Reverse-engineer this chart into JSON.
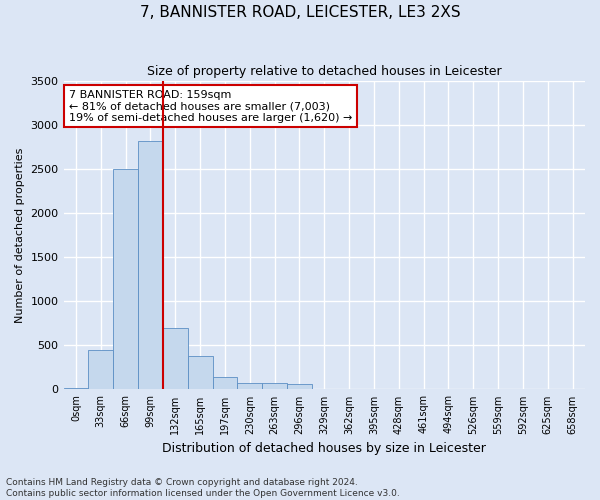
{
  "title": "7, BANNISTER ROAD, LEICESTER, LE3 2XS",
  "subtitle": "Size of property relative to detached houses in Leicester",
  "xlabel": "Distribution of detached houses by size in Leicester",
  "ylabel": "Number of detached properties",
  "footnote1": "Contains HM Land Registry data © Crown copyright and database right 2024.",
  "footnote2": "Contains public sector information licensed under the Open Government Licence v3.0.",
  "annotation_line1": "7 BANNISTER ROAD: 159sqm",
  "annotation_line2": "← 81% of detached houses are smaller (7,003)",
  "annotation_line3": "19% of semi-detached houses are larger (1,620) →",
  "bar_color": "#c5d8ed",
  "bar_edge_color": "#5b8ec4",
  "vline_color": "#cc0000",
  "vline_x": 4.0,
  "ylim": [
    0,
    3500
  ],
  "yticks": [
    0,
    500,
    1000,
    1500,
    2000,
    2500,
    3000,
    3500
  ],
  "categories": [
    "0sqm",
    "33sqm",
    "66sqm",
    "99sqm",
    "132sqm",
    "165sqm",
    "197sqm",
    "230sqm",
    "263sqm",
    "296sqm",
    "329sqm",
    "362sqm",
    "395sqm",
    "428sqm",
    "461sqm",
    "494sqm",
    "526sqm",
    "559sqm",
    "592sqm",
    "625sqm",
    "658sqm"
  ],
  "bar_heights": [
    20,
    450,
    2500,
    2820,
    700,
    375,
    140,
    75,
    70,
    65,
    0,
    0,
    0,
    0,
    0,
    0,
    0,
    0,
    0,
    0,
    0
  ],
  "background_color": "#dce6f5",
  "plot_bg_color": "#dce6f5",
  "grid_color": "#ffffff",
  "title_fontsize": 11,
  "subtitle_fontsize": 9,
  "ylabel_fontsize": 8,
  "xlabel_fontsize": 9,
  "footnote_fontsize": 6.5,
  "annotation_fontsize": 8
}
